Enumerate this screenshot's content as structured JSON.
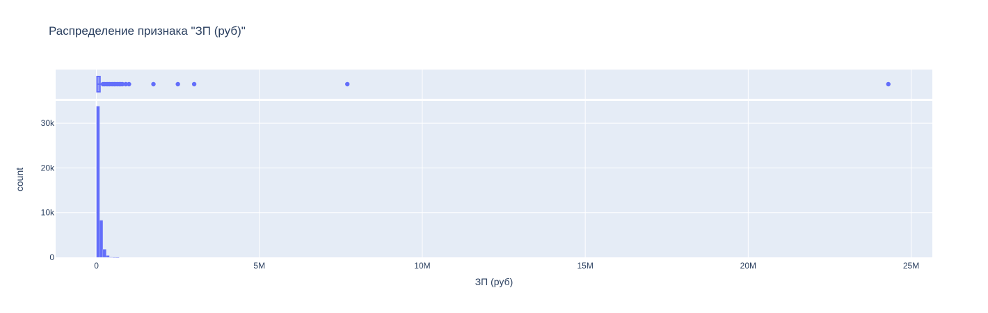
{
  "chart_data": {
    "type": "histogram",
    "title": "Распределение признака \"ЗП (руб)\"",
    "xlabel": "ЗП (руб)",
    "ylabel": "count",
    "color": "#636efa",
    "plot_bg": "#e5ecf6",
    "xlim": [
      -1250000,
      25650000
    ],
    "x_ticks": [
      {
        "value": 0,
        "label": "0"
      },
      {
        "value": 5000000,
        "label": "5M"
      },
      {
        "value": 10000000,
        "label": "10M"
      },
      {
        "value": 15000000,
        "label": "15M"
      },
      {
        "value": 20000000,
        "label": "20M"
      },
      {
        "value": 25000000,
        "label": "25M"
      }
    ],
    "ylim": [
      0,
      35000
    ],
    "y_ticks": [
      {
        "value": 0,
        "label": "0"
      },
      {
        "value": 10000,
        "label": "10k"
      },
      {
        "value": 20000,
        "label": "20k"
      },
      {
        "value": 30000,
        "label": "30k"
      }
    ],
    "bin_width": 100000,
    "bins": [
      {
        "x0": 0,
        "count": 33800
      },
      {
        "x0": 100000,
        "count": 8300
      },
      {
        "x0": 200000,
        "count": 1800
      },
      {
        "x0": 300000,
        "count": 400
      },
      {
        "x0": 400000,
        "count": 60
      },
      {
        "x0": 500000,
        "count": 20
      },
      {
        "x0": 600000,
        "count": 10
      }
    ],
    "box_outliers": [
      200000,
      250000,
      300000,
      350000,
      400000,
      450000,
      500000,
      550000,
      600000,
      650000,
      700000,
      750000,
      800000,
      900000,
      1000000,
      1750000,
      2500000,
      3000000,
      7700000,
      24300000
    ],
    "box_whisker": [
      0,
      180000
    ],
    "box_quartiles": [
      40000,
      90000
    ]
  }
}
